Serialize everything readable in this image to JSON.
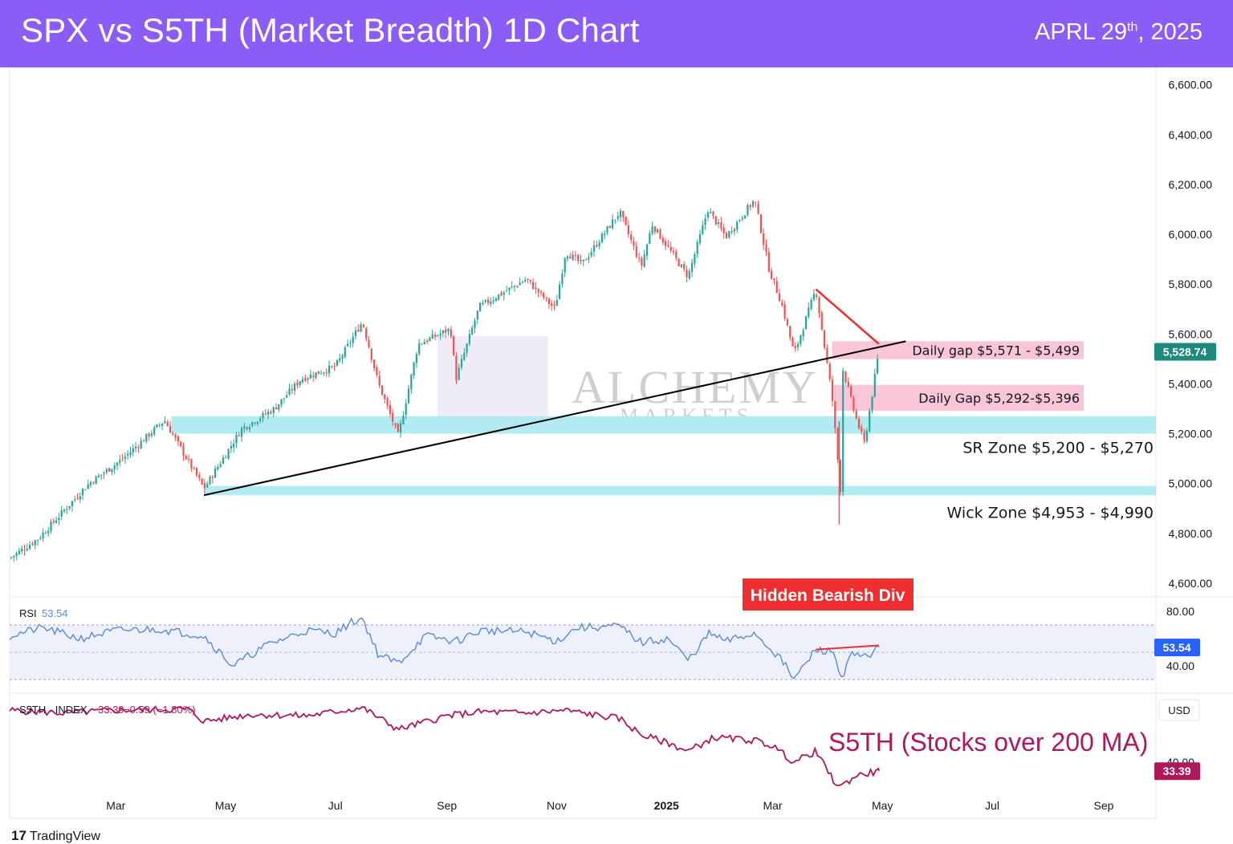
{
  "header": {
    "title": "SPX vs S5TH (Market Breadth) 1D Chart",
    "date_prefix": "APRL 29",
    "date_sup": "th",
    "date_suffix": ", 2025",
    "background": "#8b5cf6"
  },
  "footer": {
    "brand_mark": "17",
    "brand": "TradingView"
  },
  "watermark": {
    "line1": "ALCHEMY",
    "line2": "MARKETS"
  },
  "colors": {
    "up": "#26a69a",
    "down": "#ef5350",
    "trendline": "#000000",
    "zone": "#b2ebf2",
    "gap": "#f8bbd0",
    "rsi": "#5b8bd6",
    "s5th": "#b0185c",
    "callout": "#ef2f2f",
    "price_tag": "#1e8a7e",
    "rsi_tag": "#2962ff"
  },
  "chart_data": [
    {
      "type": "candlestick",
      "title": "",
      "ylim": [
        4600,
        6600
      ],
      "y_ticks": [
        "6,600.00",
        "6,400.00",
        "6,200.00",
        "6,000.00",
        "5,800.00",
        "5,600.00",
        "5,400.00",
        "5,200.00",
        "5,000.00",
        "4,800.00",
        "4,600.00"
      ],
      "y_tick_values": [
        6600,
        6400,
        6200,
        6000,
        5800,
        5600,
        5400,
        5200,
        5000,
        4800,
        4600
      ],
      "last_price": "5,528.74",
      "x_labels": [
        "Mar",
        "May",
        "Jul",
        "Sep",
        "Nov",
        "2025",
        "Mar",
        "May",
        "Jul",
        "Sep"
      ],
      "x_label_dates": [
        "2024-03",
        "2024-05",
        "2024-07",
        "2024-09",
        "2024-11",
        "2025-01",
        "2025-03",
        "2025-05",
        "2025-07",
        "2025-09"
      ],
      "path_dates": [
        "2024-01-02",
        "2024-01-18",
        "2024-02-15",
        "2024-03-05",
        "2024-03-28",
        "2024-04-19",
        "2024-05-10",
        "2024-05-28",
        "2024-06-12",
        "2024-07-01",
        "2024-07-16",
        "2024-07-25",
        "2024-08-05",
        "2024-08-16",
        "2024-09-03",
        "2024-09-06",
        "2024-09-19",
        "2024-10-15",
        "2024-10-31",
        "2024-11-06",
        "2024-11-15",
        "2024-12-06",
        "2024-12-18",
        "2024-12-24",
        "2025-01-13",
        "2025-01-24",
        "2025-02-03",
        "2025-02-19",
        "2025-02-27",
        "2025-03-06",
        "2025-03-13",
        "2025-03-25",
        "2025-04-03",
        "2025-04-08",
        "2025-04-09",
        "2025-04-16",
        "2025-04-21",
        "2025-04-29"
      ],
      "path_closes": [
        4700,
        4780,
        5000,
        5100,
        5254,
        4980,
        5220,
        5300,
        5420,
        5470,
        5650,
        5400,
        5190,
        5560,
        5620,
        5420,
        5710,
        5820,
        5700,
        5930,
        5880,
        6090,
        5870,
        6040,
        5830,
        6100,
        5990,
        6140,
        5860,
        5720,
        5520,
        5780,
        5350,
        4950,
        5460,
        5270,
        5160,
        5529
      ],
      "zones": [
        {
          "label": "SR Zone $5,200 - $5,270",
          "low": 5200,
          "high": 5270,
          "from": "2024-04-01"
        },
        {
          "label": "Wick Zone $4,953 - $4,990",
          "low": 4953,
          "high": 4990,
          "from": "2024-04-19"
        }
      ],
      "gaps": [
        {
          "label": "Daily gap $5,571 - $5,499",
          "low": 5499,
          "high": 5571,
          "from": "2025-04-03"
        },
        {
          "label": "Daily Gap $5,292-$5,396",
          "low": 5292,
          "high": 5396,
          "from": "2025-04-04"
        }
      ],
      "trendline": {
        "from": [
          "2024-04-19",
          4953
        ],
        "to": [
          "2025-05-14",
          5571
        ]
      },
      "red_line": {
        "from": [
          "2025-03-25",
          5780
        ],
        "to": [
          "2025-04-29",
          5560
        ]
      }
    },
    {
      "type": "line",
      "title": "RSI",
      "value": "53.54",
      "ylim": [
        20,
        90
      ],
      "y_ticks": [
        "80.00",
        "40.00"
      ],
      "y_tick_values": [
        80,
        40
      ],
      "band": [
        30,
        70
      ],
      "path_dates": [
        "2024-01-02",
        "2024-01-20",
        "2024-02-10",
        "2024-03-01",
        "2024-03-25",
        "2024-04-19",
        "2024-05-05",
        "2024-05-25",
        "2024-06-15",
        "2024-07-01",
        "2024-07-10",
        "2024-07-16",
        "2024-07-25",
        "2024-08-05",
        "2024-08-20",
        "2024-09-06",
        "2024-09-20",
        "2024-10-15",
        "2024-11-01",
        "2024-11-12",
        "2024-12-06",
        "2024-12-18",
        "2025-01-02",
        "2025-01-13",
        "2025-01-25",
        "2025-02-03",
        "2025-02-19",
        "2025-03-05",
        "2025-03-13",
        "2025-03-25",
        "2025-04-04",
        "2025-04-08",
        "2025-04-14",
        "2025-04-21",
        "2025-04-29"
      ],
      "path_values": [
        62,
        68,
        60,
        66,
        67,
        62,
        40,
        56,
        66,
        64,
        72,
        75,
        48,
        42,
        62,
        58,
        66,
        65,
        58,
        68,
        69,
        57,
        60,
        44,
        64,
        58,
        64,
        46,
        30,
        52,
        50,
        31,
        48,
        46,
        53.54
      ],
      "divergence": {
        "from": [
          "2025-03-25",
          52
        ],
        "to": [
          "2025-04-29",
          55
        ]
      },
      "annotation": "Hidden Bearish Div"
    },
    {
      "type": "line",
      "title": "S5TH · INDEX",
      "value": "33.39",
      "change": "−0.59 (−1.80%)",
      "ylim": [
        20,
        90
      ],
      "y_ticks": [
        "40.00"
      ],
      "y_tick_values": [
        40
      ],
      "currency": "USD",
      "path_dates": [
        "2024-01-02",
        "2024-02-01",
        "2024-03-01",
        "2024-04-10",
        "2024-04-19",
        "2024-05-15",
        "2024-06-15",
        "2024-07-16",
        "2024-08-05",
        "2024-09-01",
        "2024-09-20",
        "2024-10-15",
        "2024-11-06",
        "2024-11-25",
        "2024-12-06",
        "2024-12-18",
        "2025-01-02",
        "2025-01-13",
        "2025-01-27",
        "2025-02-19",
        "2025-03-01",
        "2025-03-13",
        "2025-03-25",
        "2025-04-04",
        "2025-04-08",
        "2025-04-16",
        "2025-04-29"
      ],
      "path_values": [
        78,
        76,
        78,
        79,
        70,
        75,
        74,
        80,
        64,
        74,
        77,
        76,
        78,
        74,
        72,
        60,
        54,
        48,
        58,
        56,
        52,
        40,
        48,
        26,
        22,
        30,
        33.39
      ],
      "annotation": "S5TH (Stocks over 200 MA)"
    }
  ]
}
